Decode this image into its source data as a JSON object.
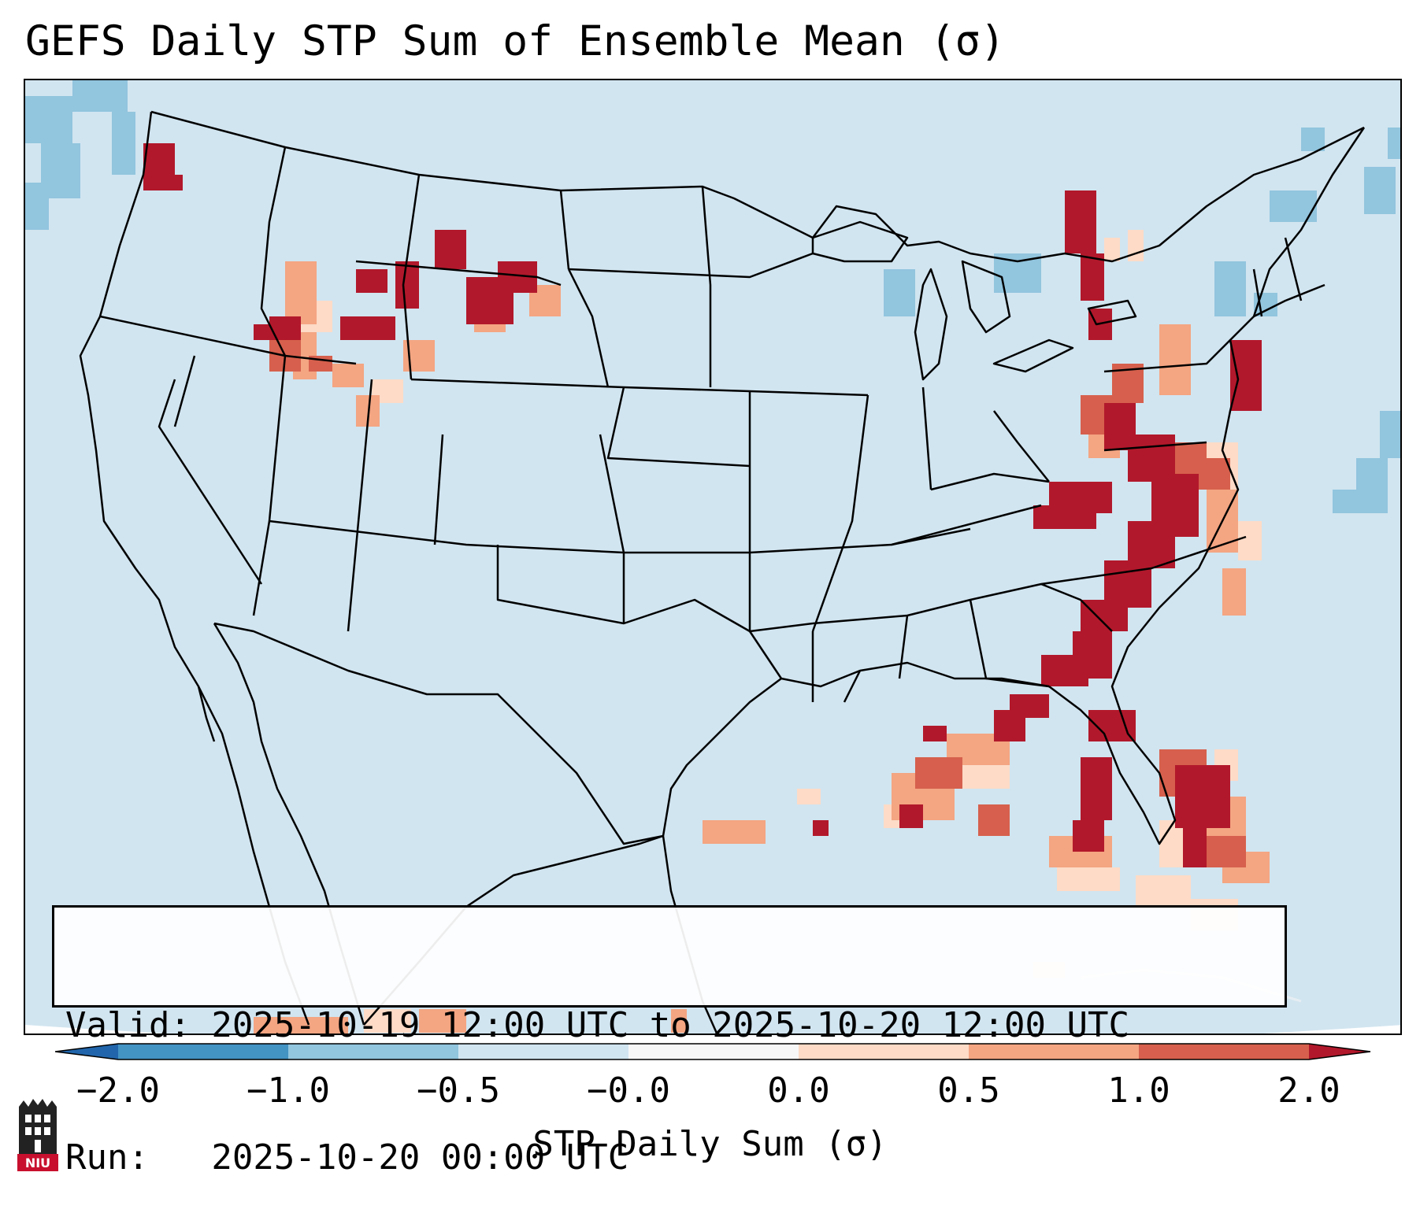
{
  "title": "GEFS Daily STP Sum of Ensemble Mean (σ)",
  "info": {
    "valid_line": "Valid: 2025-10-19 12:00 UTC to 2025-10-20 12:00 UTC",
    "run_line": "Run:   2025-10-20 00:00 UTC"
  },
  "colorbar": {
    "label": "STP Daily Sum (σ)",
    "ticks": [
      "−2.0",
      "−1.0",
      "−0.5",
      "−0.0",
      "0.0",
      "0.5",
      "1.0",
      "2.0"
    ],
    "colors": [
      "#2b83ba",
      "#4393c3",
      "#92c5de",
      "#d1e5f0",
      "#f7f7f7",
      "#fddbc7",
      "#f4a582",
      "#d6604d",
      "#b2182b"
    ],
    "under_color": "#2166ac",
    "over_color": "#b2182b"
  },
  "map": {
    "background_color": "#d1e5f0",
    "ocean_color": "#d1e5f0"
  },
  "logo": {
    "text": "NIU"
  }
}
